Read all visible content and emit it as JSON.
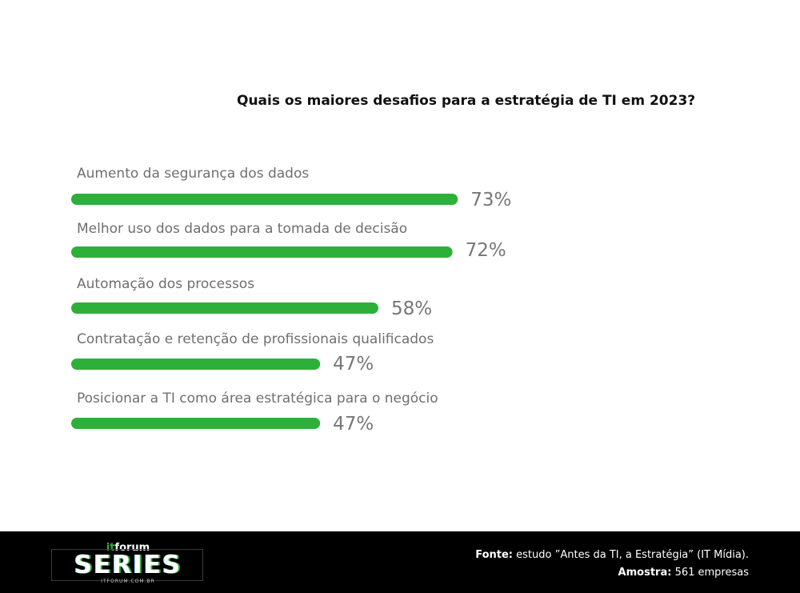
{
  "title": "Quais os maiores desafios para a estratégia de TI em 2023?",
  "chart_data": {
    "type": "bar",
    "orientation": "horizontal",
    "title": "Quais os maiores desafios para a estratégia de TI em 2023?",
    "categories": [
      "Aumento da segurança dos dados",
      "Melhor uso dos dados para a tomada de decisão",
      "Automação dos processos",
      "Contratação e retenção de profissionais qualificados",
      "Posicionar a TI como área estratégica para o negócio"
    ],
    "values": [
      73,
      72,
      58,
      47,
      47
    ],
    "value_labels": [
      "73%",
      "72%",
      "58%",
      "47%",
      "47%"
    ],
    "bar_color": "#2db039",
    "grid": false
  },
  "footer": {
    "logo": {
      "prefix": "it",
      "brand": "forum",
      "main": "SERIES",
      "url": "ITFORUM.COM.BR"
    },
    "source_label": "Fonte:",
    "source_text": "estudo ”Antes da TI, a Estratégia” (IT Mídia).",
    "sample_label": "Amostra:",
    "sample_text": "561 empresas"
  },
  "colors": {
    "accent": "#2db039",
    "footer_bg": "#000000"
  }
}
